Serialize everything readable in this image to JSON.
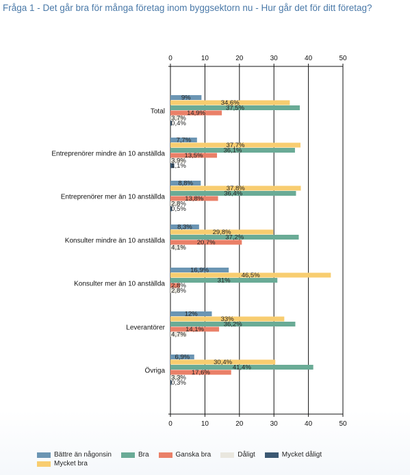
{
  "title": "Fråga 1 - Det går bra för många företag inom byggsektorn nu - Hur går det för ditt företag?",
  "chart_data": {
    "type": "bar",
    "orientation": "horizontal",
    "categories": [
      "Total",
      "Entreprenörer mindre än 10 anställda",
      "Entreprenörer mer än 10 anställda",
      "Konsulter mindre än 10 anställda",
      "Konsulter mer än 10 anställda",
      "Leverantörer",
      "Övriga"
    ],
    "series": [
      {
        "name": "Bättre än någonsin",
        "color": "#6b95b3",
        "values": [
          9,
          7.7,
          8.8,
          8.3,
          16.9,
          12,
          6.9
        ],
        "labels": [
          "9%",
          "7,7%",
          "8,8%",
          "8,3%",
          "16,9%",
          "12%",
          "6,9%"
        ]
      },
      {
        "name": "Mycket bra",
        "color": "#f8cd70",
        "values": [
          34.6,
          37.7,
          37.8,
          29.8,
          46.5,
          33,
          30.4
        ],
        "labels": [
          "34,6%",
          "37,7%",
          "37,8%",
          "29,8%",
          "46,5%",
          "33%",
          "30,4%"
        ]
      },
      {
        "name": "Bra",
        "color": "#6aab96",
        "values": [
          37.5,
          36.1,
          36.4,
          37.2,
          31,
          36.2,
          41.4
        ],
        "labels": [
          "37,5%",
          "36,1%",
          "36,4%",
          "37,2%",
          "31%",
          "36,2%",
          "41,4%"
        ]
      },
      {
        "name": "Ganska bra",
        "color": "#ea8068",
        "values": [
          14.9,
          13.5,
          13.8,
          20.7,
          2.8,
          14.1,
          17.6
        ],
        "labels": [
          "14,9%",
          "13,5%",
          "13,8%",
          "20,7%",
          "2,8%",
          "14,1%",
          "17,6%"
        ]
      },
      {
        "name": "Dåligt",
        "color": "#e9e7de",
        "values": [
          3.7,
          3.9,
          2.8,
          4.1,
          2.8,
          4.7,
          3.3
        ],
        "labels": [
          "3,7%",
          "3,9%",
          "2,8%",
          "4,1%",
          "2,8%",
          "4,7%",
          "3,3%"
        ]
      },
      {
        "name": "Mycket dåligt",
        "color": "#3b5872",
        "values": [
          0.4,
          1.1,
          0.5,
          0,
          0,
          0,
          0.3
        ],
        "labels": [
          "0,4%",
          "1,1%",
          "0,5%",
          "",
          "",
          "",
          "0,3%"
        ]
      }
    ],
    "xlim": [
      0,
      50
    ],
    "ticks": [
      0,
      10,
      20,
      30,
      40,
      50
    ],
    "grid": true,
    "legend_position": "bottom",
    "legend_rows": [
      [
        "Bättre än någonsin",
        "Bra",
        "Ganska bra",
        "Dåligt",
        "Mycket dåligt"
      ],
      [
        "Mycket bra"
      ]
    ]
  }
}
